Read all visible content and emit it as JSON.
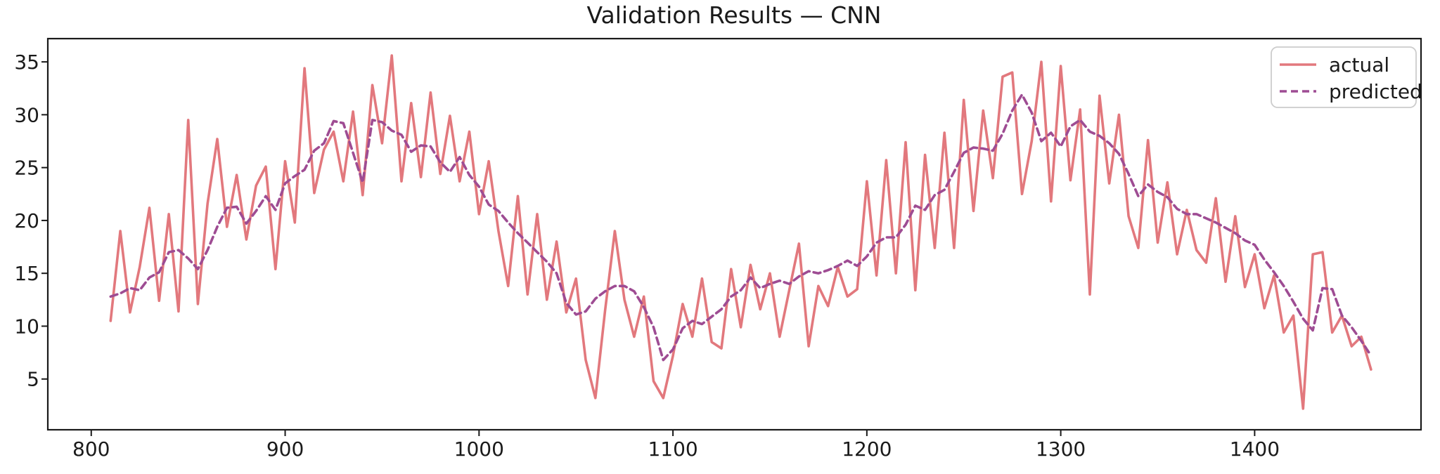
{
  "page": {
    "title": "Validation Results — CNN"
  },
  "colors": {
    "background": "#ffffff",
    "axis": "#1a1a1a",
    "actual_line": "#e2787d",
    "predicted_line": "#9e4c93",
    "legend_border": "#cccccc"
  },
  "legend": {
    "position": "upper right",
    "items": [
      {
        "label": "actual",
        "style": "solid"
      },
      {
        "label": "predicted",
        "style": "dashed"
      }
    ]
  },
  "chart_data": {
    "type": "line",
    "title": "Validation Results — CNN",
    "xlabel": "",
    "ylabel": "",
    "xlim": [
      777.6,
      1485.8
    ],
    "ylim": [
      0.2,
      37.2
    ],
    "x_ticks": [
      800,
      900,
      1000,
      1100,
      1200,
      1300,
      1400
    ],
    "y_ticks": [
      5,
      10,
      15,
      20,
      25,
      30,
      35
    ],
    "grid": false,
    "legend_position": "upper right",
    "x": [
      810,
      815,
      820,
      825,
      830,
      835,
      840,
      845,
      850,
      855,
      860,
      865,
      870,
      875,
      880,
      885,
      890,
      895,
      900,
      905,
      910,
      915,
      920,
      925,
      930,
      935,
      940,
      945,
      950,
      955,
      960,
      965,
      970,
      975,
      980,
      985,
      990,
      995,
      1000,
      1005,
      1010,
      1015,
      1020,
      1025,
      1030,
      1035,
      1040,
      1045,
      1050,
      1055,
      1060,
      1065,
      1070,
      1075,
      1080,
      1085,
      1090,
      1095,
      1100,
      1105,
      1110,
      1115,
      1120,
      1125,
      1130,
      1135,
      1140,
      1145,
      1150,
      1155,
      1160,
      1165,
      1170,
      1175,
      1180,
      1185,
      1190,
      1195,
      1200,
      1205,
      1210,
      1215,
      1220,
      1225,
      1230,
      1235,
      1240,
      1245,
      1250,
      1255,
      1260,
      1265,
      1270,
      1275,
      1280,
      1285,
      1290,
      1295,
      1300,
      1305,
      1310,
      1315,
      1320,
      1325,
      1330,
      1335,
      1340,
      1345,
      1350,
      1355,
      1360,
      1365,
      1370,
      1375,
      1380,
      1385,
      1390,
      1395,
      1400,
      1405,
      1410,
      1415,
      1420,
      1425,
      1430,
      1435,
      1440,
      1445,
      1450,
      1455,
      1460
    ],
    "series": [
      {
        "name": "actual",
        "style": "solid",
        "color": "#e2787d",
        "values": [
          10.5,
          19.0,
          11.3,
          15.6,
          21.2,
          12.4,
          20.6,
          11.4,
          29.5,
          12.1,
          21.6,
          27.7,
          19.4,
          24.3,
          18.2,
          23.3,
          25.1,
          15.4,
          25.6,
          19.8,
          34.4,
          22.6,
          26.7,
          28.4,
          23.7,
          30.3,
          22.4,
          32.8,
          27.3,
          35.6,
          23.7,
          31.1,
          24.1,
          32.1,
          24.4,
          29.9,
          23.7,
          28.4,
          20.6,
          25.6,
          19.0,
          13.8,
          22.3,
          13.0,
          20.6,
          12.5,
          18.0,
          11.3,
          14.5,
          6.8,
          3.2,
          11.5,
          19.0,
          12.5,
          9.0,
          12.8,
          4.8,
          3.2,
          7.2,
          12.1,
          9.0,
          14.5,
          8.5,
          7.9,
          15.4,
          9.9,
          15.8,
          11.6,
          15.0,
          9.0,
          13.4,
          17.8,
          8.1,
          13.8,
          11.9,
          15.6,
          12.8,
          13.5,
          23.7,
          14.8,
          25.7,
          15.0,
          27.4,
          13.4,
          26.2,
          17.4,
          28.3,
          17.4,
          31.4,
          20.9,
          30.4,
          24.0,
          33.6,
          34.0,
          22.5,
          27.5,
          35.0,
          21.8,
          34.6,
          23.8,
          30.5,
          13.0,
          31.8,
          23.5,
          30.0,
          20.4,
          17.4,
          27.6,
          17.9,
          23.6,
          16.8,
          21.0,
          17.2,
          16.0,
          22.1,
          14.2,
          20.4,
          13.7,
          16.8,
          11.7,
          14.8,
          9.4,
          11.0,
          2.2,
          16.8,
          17.0,
          9.4,
          11.0,
          8.1,
          9.0,
          5.9
        ]
      },
      {
        "name": "predicted",
        "style": "dashed",
        "color": "#9e4c93",
        "values": [
          12.8,
          13.1,
          13.6,
          13.4,
          14.6,
          15.1,
          17.0,
          17.2,
          16.4,
          15.4,
          17.2,
          19.4,
          21.2,
          21.3,
          19.7,
          20.9,
          22.3,
          21.0,
          23.5,
          24.2,
          24.8,
          26.6,
          27.3,
          29.4,
          29.2,
          26.4,
          23.6,
          29.5,
          29.3,
          28.5,
          28.1,
          26.5,
          27.1,
          27.0,
          25.5,
          24.6,
          26.0,
          24.3,
          23.2,
          21.5,
          20.9,
          19.8,
          18.8,
          17.9,
          17.0,
          16.1,
          15.0,
          12.2,
          11.1,
          11.4,
          12.6,
          13.3,
          13.8,
          13.8,
          13.3,
          11.8,
          9.9,
          6.8,
          7.8,
          9.8,
          10.5,
          10.2,
          10.9,
          11.6,
          12.8,
          13.4,
          14.6,
          13.6,
          14.0,
          14.3,
          14.0,
          14.7,
          15.2,
          15.0,
          15.3,
          15.7,
          16.2,
          15.7,
          16.6,
          17.9,
          18.4,
          18.4,
          19.6,
          21.4,
          21.0,
          22.4,
          22.9,
          24.6,
          26.4,
          26.9,
          26.8,
          26.6,
          28.2,
          30.4,
          31.9,
          30.2,
          27.5,
          28.3,
          27.0,
          28.9,
          29.5,
          28.4,
          28.0,
          27.3,
          26.3,
          24.4,
          22.3,
          23.4,
          22.7,
          22.2,
          21.1,
          20.6,
          20.6,
          20.2,
          19.8,
          19.3,
          18.8,
          18.1,
          17.7,
          16.3,
          15.1,
          13.8,
          12.3,
          10.7,
          9.6,
          13.6,
          13.5,
          11.0,
          9.9,
          8.6,
          7.2
        ]
      }
    ]
  }
}
